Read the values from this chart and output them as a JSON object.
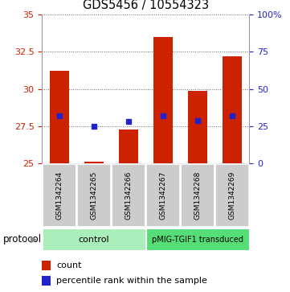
{
  "title": "GDS5456 / 10554323",
  "samples": [
    "GSM1342264",
    "GSM1342265",
    "GSM1342266",
    "GSM1342267",
    "GSM1342268",
    "GSM1342269"
  ],
  "count_values": [
    31.2,
    25.1,
    27.3,
    33.5,
    29.9,
    32.2
  ],
  "percentile_values": [
    28.2,
    27.5,
    27.8,
    28.2,
    27.9,
    28.2
  ],
  "bar_baseline": 25.0,
  "ylim_left": [
    25,
    35
  ],
  "ylim_right": [
    0,
    100
  ],
  "yticks_left": [
    25,
    27.5,
    30,
    32.5,
    35
  ],
  "yticks_right": [
    0,
    25,
    50,
    75,
    100
  ],
  "ytick_labels_left": [
    "25",
    "27.5",
    "30",
    "32.5",
    "35"
  ],
  "ytick_labels_right": [
    "0",
    "25",
    "50",
    "75",
    "100%"
  ],
  "bar_color": "#cc2200",
  "dot_color": "#2222cc",
  "bar_width": 0.55,
  "grid_color": "#666666",
  "groups": [
    {
      "label": "control",
      "color": "#aaeebb"
    },
    {
      "label": "pMIG-TGIF1 transduced",
      "color": "#55dd77"
    }
  ],
  "protocol_label": "protocol",
  "legend_count_label": "count",
  "legend_percentile_label": "percentile rank within the sample",
  "title_fontsize": 10.5,
  "axis_tick_fontsize": 8,
  "background_color": "#ffffff",
  "sample_box_color": "#cccccc",
  "sample_label_fontsize": 6.5
}
